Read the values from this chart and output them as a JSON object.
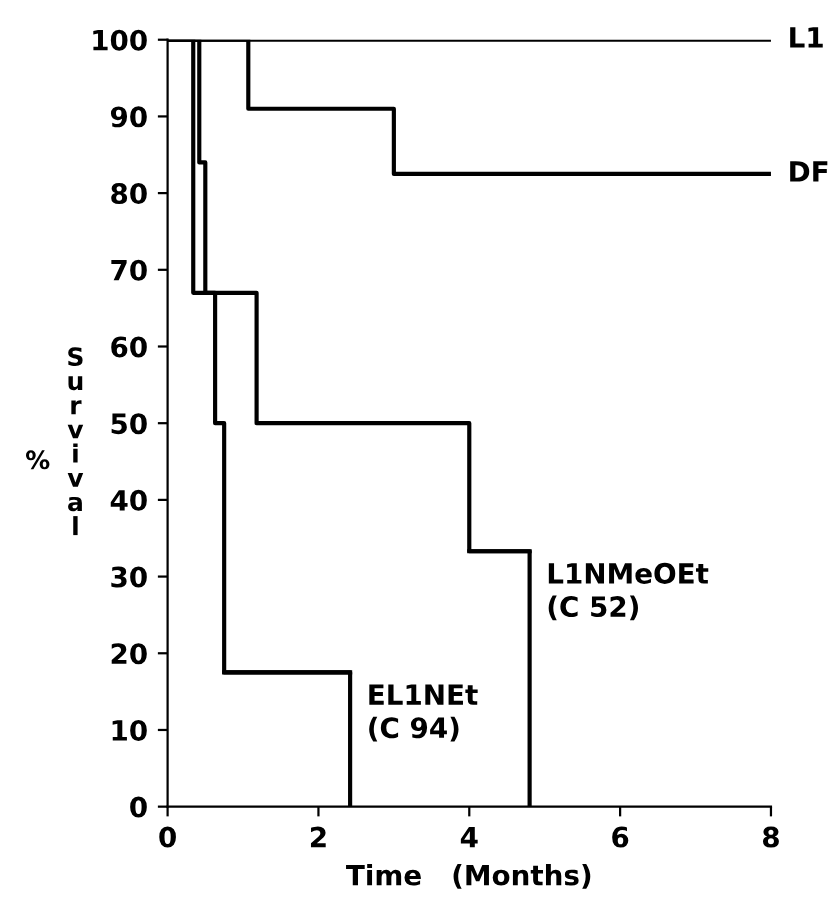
{
  "chart_data": {
    "type": "step",
    "xlabel": "Time   (Months)",
    "ylabel": "% Survival",
    "xlim": [
      0,
      8
    ],
    "ylim": [
      0,
      100
    ],
    "xticks": [
      0,
      2,
      4,
      6,
      8
    ],
    "yticks": [
      0,
      10,
      20,
      30,
      40,
      50,
      60,
      70,
      80,
      90,
      100
    ],
    "grid": false,
    "line_style": "solid",
    "marker": "none",
    "series": [
      {
        "name": "L1",
        "color": "#000000",
        "x": [
          0,
          8
        ],
        "values": [
          100,
          100
        ]
      },
      {
        "name": "DF",
        "color": "#000000",
        "x": [
          0,
          1.07,
          3.0,
          8
        ],
        "values": [
          100,
          91,
          82.5,
          82.5
        ]
      },
      {
        "name": "L1NMeOEt\n(C 52)",
        "color": "#000000",
        "x": [
          0,
          0.42,
          0.5,
          1.18,
          4.0,
          4.8
        ],
        "values": [
          100,
          84,
          67,
          50,
          33.3,
          0
        ]
      },
      {
        "name": "EL1NEt\n(C 94)",
        "color": "#000000",
        "x": [
          0,
          0.34,
          0.63,
          0.75,
          2.42
        ],
        "values": [
          100,
          67,
          50,
          17.5,
          0
        ]
      }
    ]
  }
}
